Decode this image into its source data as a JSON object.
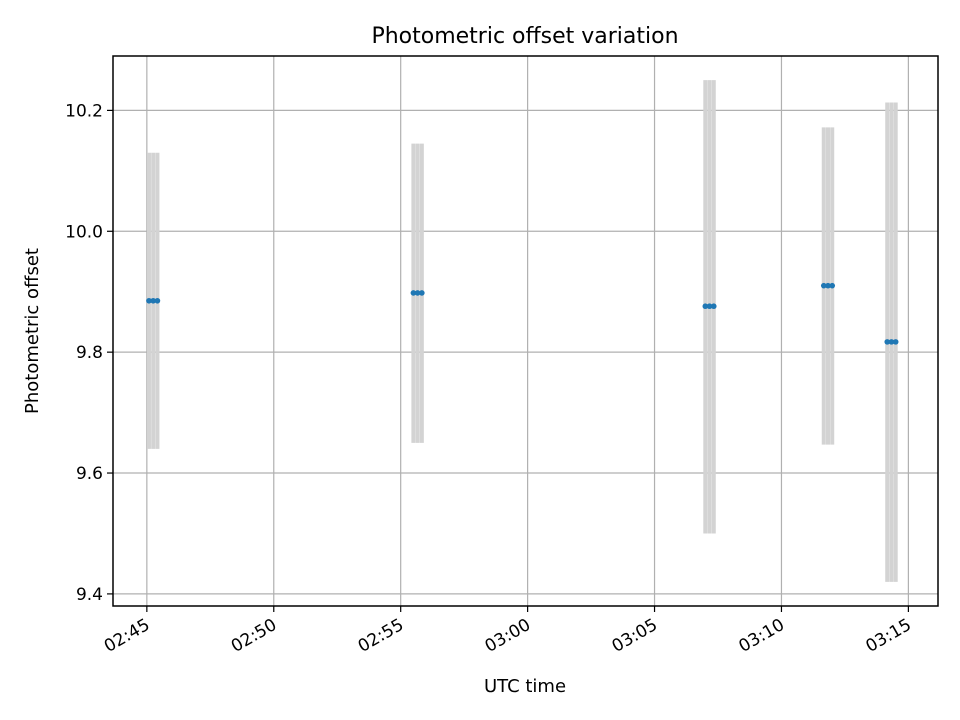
{
  "chart_data": {
    "type": "scatter",
    "title": "Photometric offset variation",
    "xlabel": "UTC time",
    "ylabel": "Photometric offset",
    "xlim": [
      "02:43:40",
      "03:16:10"
    ],
    "ylim": [
      9.38,
      10.29
    ],
    "x_ticks": [
      "02:45",
      "02:50",
      "02:55",
      "03:00",
      "03:05",
      "03:10",
      "03:15"
    ],
    "y_ticks": [
      "9.4",
      "9.6",
      "9.8",
      "10.0",
      "10.2"
    ],
    "grid": true,
    "colors": {
      "points": "#1f77b4",
      "errorbars": "#d3d3d3"
    },
    "points": [
      {
        "x": "02:45:05",
        "y": 9.885,
        "ymin": 9.64,
        "ymax": 10.13
      },
      {
        "x": "02:45:15",
        "y": 9.885,
        "ymin": 9.64,
        "ymax": 10.13
      },
      {
        "x": "02:45:25",
        "y": 9.885,
        "ymin": 9.64,
        "ymax": 10.13
      },
      {
        "x": "02:55:30",
        "y": 9.898,
        "ymin": 9.65,
        "ymax": 10.145
      },
      {
        "x": "02:55:40",
        "y": 9.898,
        "ymin": 9.65,
        "ymax": 10.145
      },
      {
        "x": "02:55:50",
        "y": 9.898,
        "ymin": 9.65,
        "ymax": 10.145
      },
      {
        "x": "03:07:00",
        "y": 9.876,
        "ymin": 9.5,
        "ymax": 10.25
      },
      {
        "x": "03:07:10",
        "y": 9.876,
        "ymin": 9.5,
        "ymax": 10.25
      },
      {
        "x": "03:07:20",
        "y": 9.876,
        "ymin": 9.5,
        "ymax": 10.25
      },
      {
        "x": "03:11:40",
        "y": 9.91,
        "ymin": 9.647,
        "ymax": 10.172
      },
      {
        "x": "03:11:50",
        "y": 9.91,
        "ymin": 9.647,
        "ymax": 10.172
      },
      {
        "x": "03:12:00",
        "y": 9.91,
        "ymin": 9.647,
        "ymax": 10.172
      },
      {
        "x": "03:14:10",
        "y": 9.817,
        "ymin": 9.42,
        "ymax": 10.213
      },
      {
        "x": "03:14:20",
        "y": 9.817,
        "ymin": 9.42,
        "ymax": 10.213
      },
      {
        "x": "03:14:30",
        "y": 9.817,
        "ymin": 9.42,
        "ymax": 10.213
      }
    ]
  }
}
